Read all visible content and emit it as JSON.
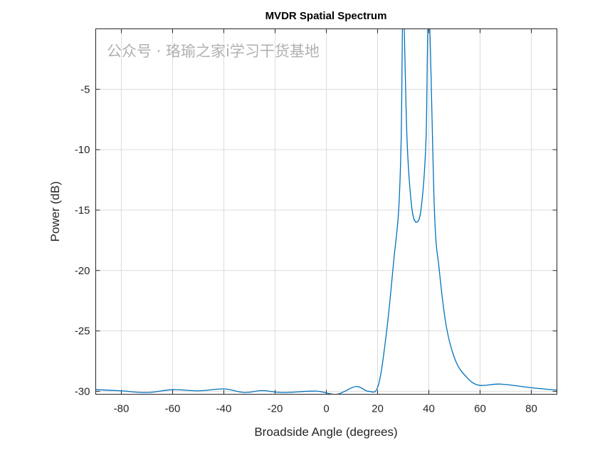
{
  "chart_data": {
    "type": "line",
    "title": "MVDR Spatial Spectrum",
    "xlabel": "Broadside Angle (degrees)",
    "ylabel": "Power (dB)",
    "xlim": [
      -90,
      90
    ],
    "ylim": [
      -30.24,
      0
    ],
    "xticks": [
      -80,
      -60,
      -40,
      -20,
      0,
      20,
      40,
      60,
      80
    ],
    "yticks": [
      -5,
      -10,
      -15,
      -20,
      -25,
      -30
    ],
    "grid": true,
    "line_color": "#0072BD",
    "series": [
      {
        "x": [
          -90,
          -80,
          -70,
          -60,
          -50,
          -40,
          -32,
          -25,
          -17,
          -4,
          4,
          11.5,
          16.5,
          20.3,
          23.6,
          26.4,
          28.2,
          29.2,
          30,
          31.5,
          33.3,
          35.2,
          37.1,
          38.9,
          40,
          42.2,
          44,
          46.8,
          50.5,
          55.1,
          59.7,
          68,
          80,
          90
        ],
        "y": [
          -29.86,
          -29.96,
          -30.1,
          -29.86,
          -29.96,
          -29.8,
          -30.1,
          -29.94,
          -30.1,
          -29.98,
          -30.25,
          -29.6,
          -30.0,
          -29.5,
          -24.9,
          -19.0,
          -15.1,
          -9.2,
          2,
          -9.2,
          -14.7,
          -16.0,
          -14.7,
          -9.2,
          2,
          -15.1,
          -19.8,
          -24.6,
          -27.5,
          -28.9,
          -29.5,
          -29.4,
          -29.7,
          -29.9
        ]
      }
    ]
  },
  "watermark": "公众号 · 珞瑜之家i学习干货基地"
}
